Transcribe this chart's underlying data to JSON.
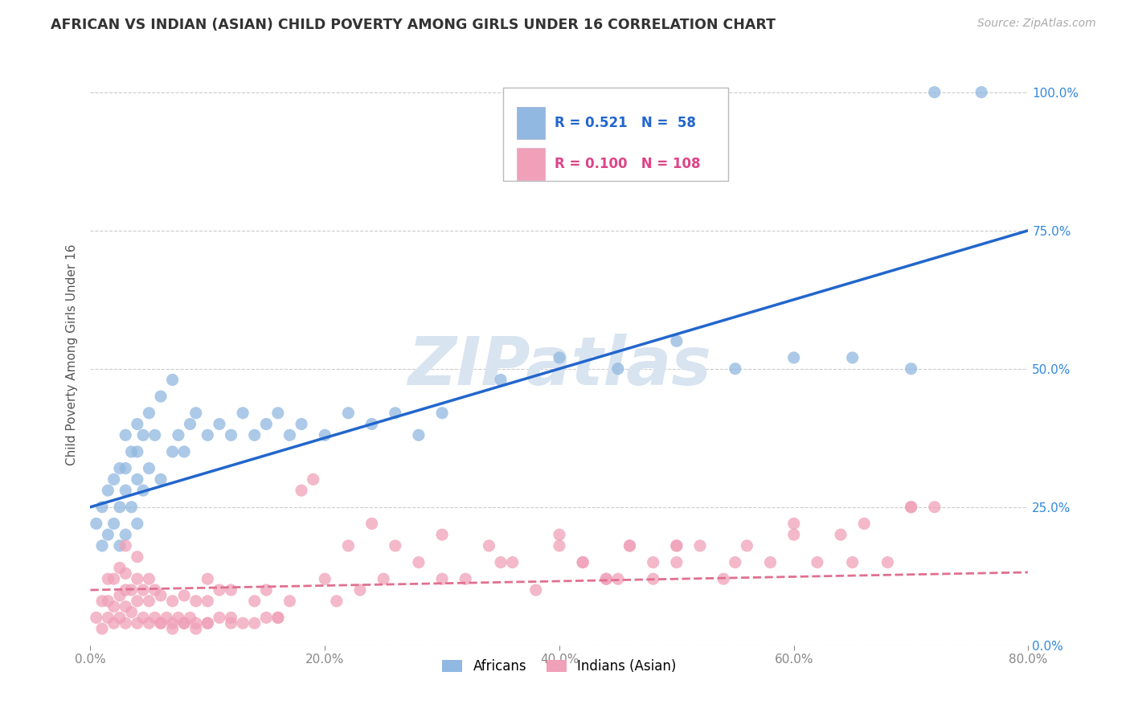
{
  "title": "AFRICAN VS INDIAN (ASIAN) CHILD POVERTY AMONG GIRLS UNDER 16 CORRELATION CHART",
  "source": "Source: ZipAtlas.com",
  "ylabel": "Child Poverty Among Girls Under 16",
  "xlim": [
    0.0,
    0.8
  ],
  "ylim": [
    0.0,
    1.05
  ],
  "africans_R": 0.521,
  "africans_N": 58,
  "indians_R": 0.1,
  "indians_N": 108,
  "africans_color": "#90B8E0",
  "indians_color": "#F0A0B8",
  "trendline_african_color": "#2266CC",
  "trendline_indian_color": "#E07090",
  "watermark_color": "#D8E4F0",
  "background_color": "#FFFFFF",
  "africans_x": [
    0.005,
    0.01,
    0.01,
    0.015,
    0.015,
    0.02,
    0.02,
    0.025,
    0.025,
    0.025,
    0.03,
    0.03,
    0.03,
    0.03,
    0.035,
    0.035,
    0.04,
    0.04,
    0.04,
    0.04,
    0.045,
    0.045,
    0.05,
    0.05,
    0.055,
    0.06,
    0.06,
    0.07,
    0.07,
    0.075,
    0.08,
    0.085,
    0.09,
    0.1,
    0.11,
    0.12,
    0.13,
    0.14,
    0.15,
    0.16,
    0.17,
    0.18,
    0.2,
    0.22,
    0.24,
    0.26,
    0.28,
    0.3,
    0.35,
    0.4,
    0.45,
    0.5,
    0.55,
    0.6,
    0.65,
    0.7,
    0.72,
    0.76
  ],
  "africans_y": [
    0.22,
    0.18,
    0.25,
    0.2,
    0.28,
    0.22,
    0.3,
    0.18,
    0.25,
    0.32,
    0.2,
    0.28,
    0.32,
    0.38,
    0.25,
    0.35,
    0.22,
    0.3,
    0.35,
    0.4,
    0.28,
    0.38,
    0.32,
    0.42,
    0.38,
    0.3,
    0.45,
    0.35,
    0.48,
    0.38,
    0.35,
    0.4,
    0.42,
    0.38,
    0.4,
    0.38,
    0.42,
    0.38,
    0.4,
    0.42,
    0.38,
    0.4,
    0.38,
    0.42,
    0.4,
    0.42,
    0.38,
    0.42,
    0.48,
    0.52,
    0.5,
    0.55,
    0.5,
    0.52,
    0.52,
    0.5,
    1.0,
    1.0
  ],
  "indians_x": [
    0.005,
    0.01,
    0.01,
    0.015,
    0.015,
    0.015,
    0.02,
    0.02,
    0.02,
    0.025,
    0.025,
    0.025,
    0.03,
    0.03,
    0.03,
    0.03,
    0.03,
    0.035,
    0.035,
    0.04,
    0.04,
    0.04,
    0.04,
    0.045,
    0.045,
    0.05,
    0.05,
    0.05,
    0.055,
    0.055,
    0.06,
    0.06,
    0.065,
    0.07,
    0.07,
    0.075,
    0.08,
    0.08,
    0.085,
    0.09,
    0.09,
    0.1,
    0.1,
    0.1,
    0.11,
    0.11,
    0.12,
    0.12,
    0.13,
    0.14,
    0.15,
    0.15,
    0.16,
    0.17,
    0.18,
    0.19,
    0.2,
    0.21,
    0.22,
    0.23,
    0.24,
    0.25,
    0.26,
    0.28,
    0.3,
    0.32,
    0.34,
    0.36,
    0.38,
    0.4,
    0.42,
    0.44,
    0.46,
    0.48,
    0.5,
    0.52,
    0.54,
    0.56,
    0.58,
    0.6,
    0.62,
    0.64,
    0.66,
    0.68,
    0.7,
    0.42,
    0.44,
    0.46,
    0.48,
    0.5,
    0.3,
    0.35,
    0.4,
    0.45,
    0.5,
    0.55,
    0.6,
    0.65,
    0.7,
    0.72,
    0.06,
    0.07,
    0.08,
    0.09,
    0.1,
    0.12,
    0.14,
    0.16
  ],
  "indians_y": [
    0.05,
    0.03,
    0.08,
    0.05,
    0.08,
    0.12,
    0.04,
    0.07,
    0.12,
    0.05,
    0.09,
    0.14,
    0.04,
    0.07,
    0.1,
    0.13,
    0.18,
    0.06,
    0.1,
    0.04,
    0.08,
    0.12,
    0.16,
    0.05,
    0.1,
    0.04,
    0.08,
    0.12,
    0.05,
    0.1,
    0.04,
    0.09,
    0.05,
    0.04,
    0.08,
    0.05,
    0.04,
    0.09,
    0.05,
    0.04,
    0.08,
    0.04,
    0.08,
    0.12,
    0.05,
    0.1,
    0.05,
    0.1,
    0.04,
    0.08,
    0.05,
    0.1,
    0.05,
    0.08,
    0.28,
    0.3,
    0.12,
    0.08,
    0.18,
    0.1,
    0.22,
    0.12,
    0.18,
    0.15,
    0.2,
    0.12,
    0.18,
    0.15,
    0.1,
    0.2,
    0.15,
    0.12,
    0.18,
    0.12,
    0.15,
    0.18,
    0.12,
    0.18,
    0.15,
    0.22,
    0.15,
    0.2,
    0.22,
    0.15,
    0.25,
    0.15,
    0.12,
    0.18,
    0.15,
    0.18,
    0.12,
    0.15,
    0.18,
    0.12,
    0.18,
    0.15,
    0.2,
    0.15,
    0.25,
    0.25,
    0.04,
    0.03,
    0.04,
    0.03,
    0.04,
    0.04,
    0.04,
    0.05
  ]
}
